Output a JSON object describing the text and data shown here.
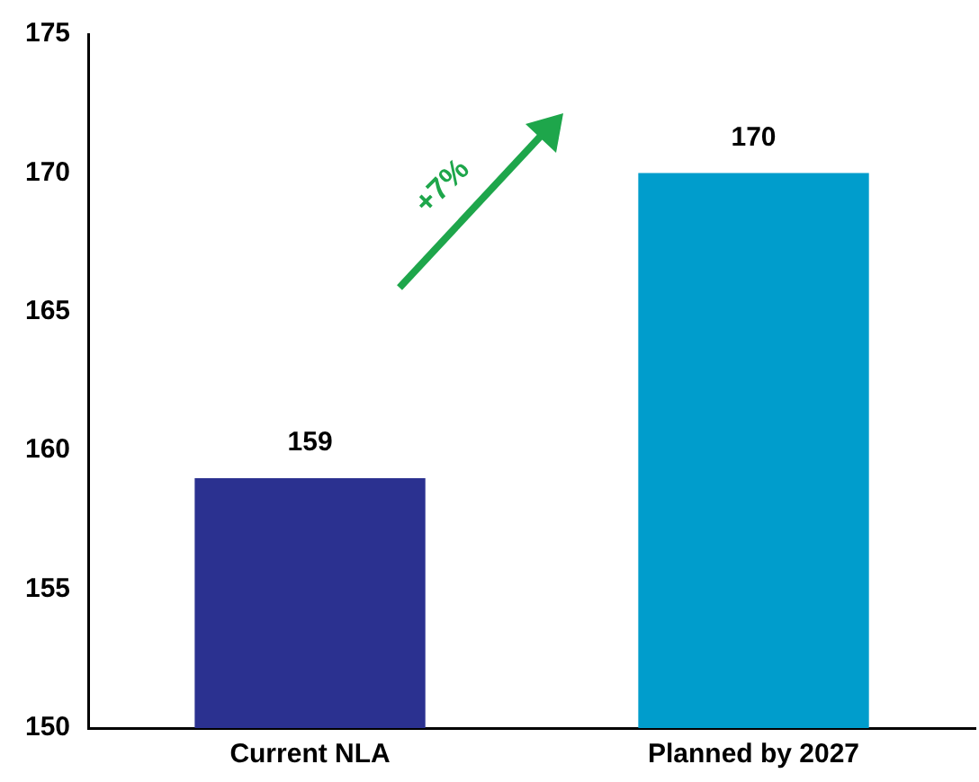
{
  "chart_data": {
    "type": "bar",
    "categories": [
      "Current NLA",
      "Planned by 2027"
    ],
    "values": [
      159,
      170
    ],
    "colors": [
      "#2b3190",
      "#009dcc"
    ],
    "ylim": [
      150,
      175
    ],
    "yticks": [
      150,
      155,
      160,
      165,
      170,
      175
    ],
    "grid": false,
    "legend": false,
    "data_labels": true,
    "annotations": [
      "+7%"
    ]
  }
}
